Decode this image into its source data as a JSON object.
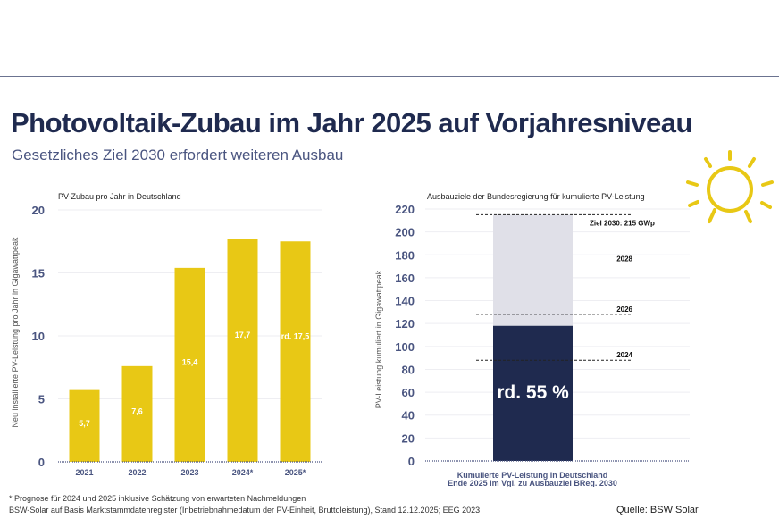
{
  "header": {
    "title": "Photovoltaik-Zubau im Jahr 2025 auf Vorjahresniveau",
    "subtitle": "Gesetzliches Ziel 2030 erfordert weiteren Ausbau"
  },
  "colors": {
    "navy": "#1f2a4f",
    "yellow": "#e8c815",
    "light": "#e0e0e8",
    "sun": "#e8c815"
  },
  "chart_data": [
    {
      "type": "bar",
      "title": "PV-Zubau pro Jahr in Deutschland",
      "ylabel": "Neu installierte PV-Leistung pro Jahr in Gigawattpeak",
      "xlabel": "",
      "categories": [
        "2021",
        "2022",
        "2023",
        "2024*",
        "2025*"
      ],
      "values": [
        5.7,
        7.6,
        15.4,
        17.7,
        17.5
      ],
      "data_labels": [
        "5,7",
        "7,6",
        "15,4",
        "17,7",
        "rd. 17,5"
      ],
      "ylim": [
        0,
        20
      ],
      "yticks": [
        0,
        5,
        10,
        15,
        20
      ],
      "grid": true
    },
    {
      "type": "bar",
      "title": "Ausbauziele der Bundesregierung für kumulierte PV-Leistung",
      "ylabel": "PV-Leistung kumuliert in Gigawattpeak",
      "xlabel": "Kumulierte PV-Leistung in Deutschland",
      "xlabel2": "Ende 2025 im Vgl. zu Ausbauziel BReg. 2030",
      "ylim": [
        0,
        220
      ],
      "yticks": [
        0,
        20,
        40,
        60,
        80,
        100,
        120,
        140,
        160,
        180,
        200,
        220
      ],
      "grid": true,
      "achieved": 118,
      "target": 215,
      "bar_label": "rd. 55 %",
      "targets": [
        {
          "label": "2024",
          "value": 88
        },
        {
          "label": "2026",
          "value": 128
        },
        {
          "label": "2028",
          "value": 172
        },
        {
          "label": "Ziel 2030: 215 GWp",
          "value": 215
        }
      ]
    }
  ],
  "footer": {
    "note1": "* Prognose für 2024 und 2025 inklusive Schätzung von erwarteten Nachmeldungen",
    "note2": "BSW-Solar auf Basis Marktstammdatenregister (Inbetriebnahmedatum der PV-Einheit, Bruttoleistung), Stand 12.12.2025; EEG 2023",
    "source": "Quelle: BSW Solar"
  }
}
